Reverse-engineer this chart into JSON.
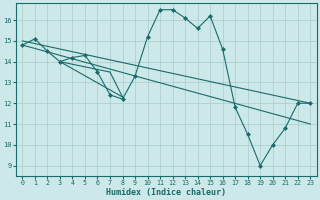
{
  "xlabel": "Humidex (Indice chaleur)",
  "bg_color": "#cce8e8",
  "grid_color": "#b0d0d0",
  "line_color": "#1a6b6b",
  "xlim": [
    -0.5,
    23.5
  ],
  "ylim": [
    8.5,
    16.8
  ],
  "yticks": [
    9,
    10,
    11,
    12,
    13,
    14,
    15,
    16
  ],
  "xticks": [
    0,
    1,
    2,
    3,
    4,
    5,
    6,
    7,
    8,
    9,
    10,
    11,
    12,
    13,
    14,
    15,
    16,
    17,
    18,
    19,
    20,
    21,
    22,
    23
  ],
  "series1": {
    "x": [
      0,
      1,
      2,
      3,
      4,
      5,
      6,
      7,
      8,
      9,
      10,
      11,
      12,
      13,
      14,
      15,
      16,
      17,
      18,
      19,
      20,
      21,
      22,
      23
    ],
    "y": [
      14.8,
      15.1,
      14.5,
      14.0,
      14.2,
      14.3,
      13.5,
      12.4,
      12.2,
      13.3,
      15.2,
      16.5,
      16.5,
      16.1,
      15.6,
      16.2,
      14.6,
      11.8,
      10.5,
      9.0,
      10.0,
      10.8,
      12.0,
      12.0
    ]
  },
  "series2": {
    "x": [
      0,
      23
    ],
    "y": [
      15.0,
      12.0
    ]
  },
  "series3": {
    "x": [
      0,
      23
    ],
    "y": [
      14.8,
      11.0
    ]
  },
  "connectors": {
    "segments": [
      {
        "x": [
          3,
          7
        ],
        "y": [
          14.0,
          13.5
        ]
      },
      {
        "x": [
          3,
          8
        ],
        "y": [
          14.0,
          12.3
        ]
      },
      {
        "x": [
          7,
          8
        ],
        "y": [
          13.5,
          12.3
        ]
      }
    ]
  }
}
